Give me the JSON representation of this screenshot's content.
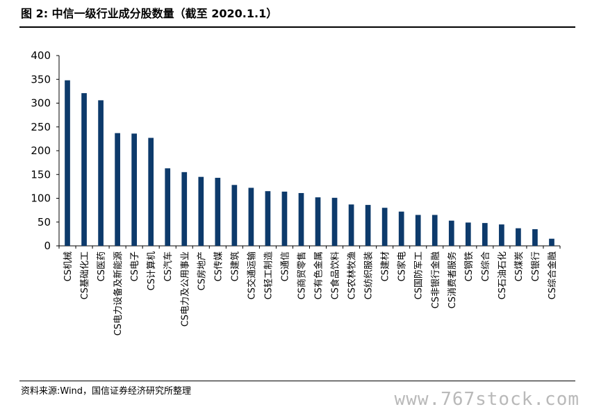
{
  "figure": {
    "title": "图 2:  中信一级行业成分股数量（截至 2020.1.1）",
    "source": "资料来源:Wind，国信证券经济研究所整理",
    "watermark": "www.767stock.com"
  },
  "chart_data": {
    "type": "bar",
    "title": "",
    "xlabel": "",
    "ylabel": "",
    "ylim": [
      0,
      400
    ],
    "yticks": [
      "0",
      "50",
      "100",
      "150",
      "200",
      "250",
      "300",
      "350",
      "400"
    ],
    "grid": false,
    "legend": "none",
    "bar_color": "#0d3a6b",
    "categories": [
      "CS机械",
      "CS基础化工",
      "CS医药",
      "CS电力设备及新能源",
      "CS电子",
      "CS计算机",
      "CS汽车",
      "CS电力及公用事业",
      "CS房地产",
      "CS传媒",
      "CS建筑",
      "CS交通运输",
      "CS轻工制造",
      "CS通信",
      "CS商贸零售",
      "CS有色金属",
      "CS食品饮料",
      "CS农林牧渔",
      "CS纺织服装",
      "CS建材",
      "CS家电",
      "CS国防军工",
      "CS非银行金融",
      "CS消费者服务",
      "CS钢铁",
      "CS综合",
      "CS石油石化",
      "CS煤炭",
      "CS银行",
      "CS综合金融"
    ],
    "values": [
      348,
      321,
      306,
      237,
      236,
      227,
      163,
      155,
      145,
      143,
      128,
      122,
      115,
      114,
      111,
      102,
      101,
      87,
      86,
      80,
      72,
      65,
      65,
      53,
      49,
      48,
      45,
      37,
      35,
      15
    ]
  }
}
